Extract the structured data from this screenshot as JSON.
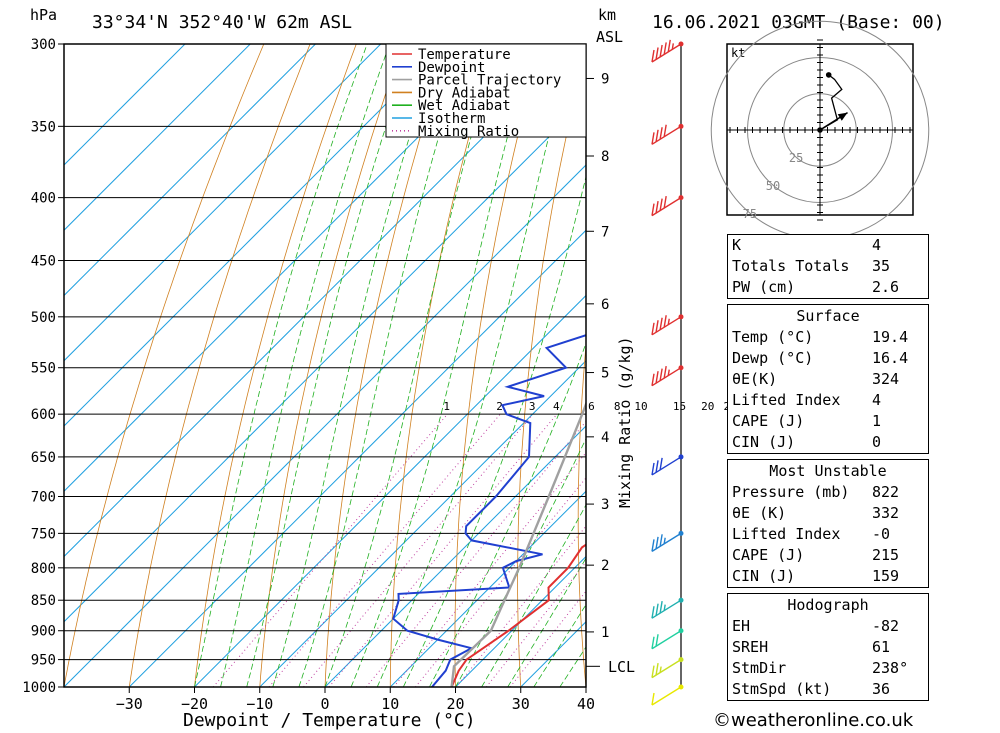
{
  "header": {
    "location": "33°34'N  352°40'W  62m  ASL",
    "datetime": "16.06.2021  03GMT  (Base: 00)",
    "hpa_label": "hPa",
    "km_label": "km",
    "asl_label": "ASL"
  },
  "chart_data": {
    "type": "line",
    "title": "33°34'N 352°40'W 62m ASL",
    "xlabel": "Dewpoint / Temperature (°C)",
    "ylabel": "hPa",
    "right_axis_label": "Mixing Ratio (g/kg)",
    "xlim": [
      -40,
      40
    ],
    "ylim": [
      1000,
      300
    ],
    "x_ticks": [
      -30,
      -20,
      -10,
      0,
      10,
      20,
      30,
      40
    ],
    "pressure_levels": [
      300,
      350,
      400,
      450,
      500,
      550,
      600,
      650,
      700,
      750,
      800,
      850,
      900,
      950,
      1000
    ],
    "km_ticks": [
      {
        "km": 1,
        "p": 902
      },
      {
        "km": 2,
        "p": 796
      },
      {
        "km": 3,
        "p": 710
      },
      {
        "km": 4,
        "p": 626
      },
      {
        "km": 5,
        "p": 555
      },
      {
        "km": 6,
        "p": 488
      },
      {
        "km": 7,
        "p": 426
      },
      {
        "km": 8,
        "p": 370
      },
      {
        "km": 9,
        "p": 320
      }
    ],
    "lcl_label": "LCL",
    "lcl_pressure": 962,
    "mixing_ratio_labels": [
      "1",
      "2",
      "3",
      "4",
      "6",
      "8",
      "10",
      "15",
      "20",
      "25"
    ],
    "legend": {
      "placement": "top-right",
      "entries": [
        {
          "name": "Temperature",
          "color": "#e03030",
          "style": "solid"
        },
        {
          "name": "Dewpoint",
          "color": "#2040d0",
          "style": "solid"
        },
        {
          "name": "Parcel Trajectory",
          "color": "#a0a0a0",
          "style": "solid"
        },
        {
          "name": "Dry Adiabat",
          "color": "#d08020",
          "style": "solid"
        },
        {
          "name": "Wet Adiabat",
          "color": "#20b020",
          "style": "solid"
        },
        {
          "name": "Isotherm",
          "color": "#20a0e0",
          "style": "solid"
        },
        {
          "name": "Mixing Ratio",
          "color": "#c040a0",
          "style": "dotted"
        }
      ]
    },
    "series": [
      {
        "name": "Temperature",
        "color": "#e03030",
        "points": [
          [
            1000,
            19.4
          ],
          [
            970,
            18
          ],
          [
            950,
            17.5
          ],
          [
            900,
            19.5
          ],
          [
            850,
            21
          ],
          [
            830,
            19
          ],
          [
            800,
            19
          ],
          [
            770,
            18
          ],
          [
            750,
            19
          ],
          [
            720,
            18
          ],
          [
            700,
            15.5
          ],
          [
            650,
            11.5
          ],
          [
            600,
            7
          ],
          [
            580,
            6.5
          ],
          [
            550,
            4
          ],
          [
            500,
            -1
          ],
          [
            450,
            -7
          ],
          [
            400,
            -14
          ],
          [
            350,
            -22
          ],
          [
            320,
            -28
          ],
          [
            300,
            -32
          ]
        ]
      },
      {
        "name": "Dewpoint",
        "color": "#2040d0",
        "points": [
          [
            1000,
            16.4
          ],
          [
            970,
            16
          ],
          [
            950,
            15
          ],
          [
            930,
            16.5
          ],
          [
            915,
            10
          ],
          [
            900,
            4
          ],
          [
            880,
            0
          ],
          [
            850,
            -2
          ],
          [
            840,
            -3
          ],
          [
            830,
            13
          ],
          [
            800,
            9
          ],
          [
            790,
            10
          ],
          [
            780,
            13
          ],
          [
            760,
            0
          ],
          [
            750,
            -2
          ],
          [
            740,
            -3
          ],
          [
            700,
            -3
          ],
          [
            650,
            -4
          ],
          [
            610,
            -9
          ],
          [
            600,
            -14
          ],
          [
            590,
            -16
          ],
          [
            580,
            -11
          ],
          [
            570,
            -18
          ],
          [
            550,
            -12
          ],
          [
            530,
            -18
          ],
          [
            500,
            -8
          ],
          [
            450,
            -9
          ],
          [
            400,
            -14
          ],
          [
            380,
            -18
          ],
          [
            350,
            -26
          ],
          [
            320,
            -32
          ],
          [
            300,
            -42
          ]
        ]
      },
      {
        "name": "Parcel Trajectory",
        "color": "#a0a0a0",
        "points": [
          [
            1000,
            19.4
          ],
          [
            962,
            16.6
          ],
          [
            900,
            16.8
          ],
          [
            850,
            14.2
          ],
          [
            800,
            11.5
          ],
          [
            750,
            8.4
          ],
          [
            700,
            5.1
          ],
          [
            650,
            1.5
          ],
          [
            600,
            -2.4
          ],
          [
            550,
            -6.8
          ],
          [
            500,
            -11.8
          ],
          [
            450,
            -17.4
          ],
          [
            400,
            -23.8
          ],
          [
            350,
            -31.5
          ],
          [
            300,
            -40.5
          ]
        ]
      }
    ],
    "wind_barbs": [
      {
        "p": 1000,
        "color": "#e8e800",
        "speed_kt": 10
      },
      {
        "p": 950,
        "color": "#c8e020",
        "speed_kt": 15
      },
      {
        "p": 900,
        "color": "#20d0a0",
        "speed_kt": 20
      },
      {
        "p": 850,
        "color": "#20b0b0",
        "speed_kt": 25
      },
      {
        "p": 750,
        "color": "#2080d0",
        "speed_kt": 25
      },
      {
        "p": 650,
        "color": "#2040d0",
        "speed_kt": 30
      },
      {
        "p": 550,
        "color": "#e03030",
        "speed_kt": 35
      },
      {
        "p": 500,
        "color": "#e03030",
        "speed_kt": 35
      },
      {
        "p": 400,
        "color": "#e03030",
        "speed_kt": 40
      },
      {
        "p": 350,
        "color": "#e03030",
        "speed_kt": 40
      },
      {
        "p": 300,
        "color": "#e03030",
        "speed_kt": 45
      }
    ],
    "hodograph": {
      "unit_label": "kt",
      "ring_labels": [
        "25",
        "50",
        "75"
      ],
      "trace_kt": [
        [
          0,
          0
        ],
        [
          12,
          7
        ],
        [
          8,
          22
        ],
        [
          15,
          28
        ],
        [
          10,
          35
        ],
        [
          6,
          38
        ]
      ],
      "storm_motion_kt": [
        [
          0,
          0
        ],
        [
          19,
          12
        ]
      ]
    }
  },
  "indices": {
    "block1": [
      {
        "k": "K",
        "v": "4"
      },
      {
        "k": "Totals Totals",
        "v": "35"
      },
      {
        "k": "PW (cm)",
        "v": "2.6"
      }
    ],
    "surface": {
      "title": "Surface",
      "rows": [
        {
          "k": "Temp (°C)",
          "v": "19.4"
        },
        {
          "k": "Dewp (°C)",
          "v": "16.4"
        },
        {
          "k": "θE(K)",
          "v": "324"
        },
        {
          "k": "Lifted Index",
          "v": "4"
        },
        {
          "k": "CAPE (J)",
          "v": "1"
        },
        {
          "k": "CIN (J)",
          "v": "0"
        }
      ]
    },
    "unstable": {
      "title": "Most Unstable",
      "rows": [
        {
          "k": "Pressure (mb)",
          "v": "822"
        },
        {
          "k": "θE (K)",
          "v": "332"
        },
        {
          "k": "Lifted Index",
          "v": "-0"
        },
        {
          "k": "CAPE (J)",
          "v": "215"
        },
        {
          "k": "CIN (J)",
          "v": "159"
        }
      ]
    },
    "hodo": {
      "title": "Hodograph",
      "rows": [
        {
          "k": "EH",
          "v": "-82"
        },
        {
          "k": "SREH",
          "v": "61"
        },
        {
          "k": "StmDir",
          "v": "238°"
        },
        {
          "k": "StmSpd (kt)",
          "v": "36"
        }
      ]
    }
  },
  "footer": {
    "copyright": "©weatheronline.co.uk"
  },
  "colors": {
    "temperature": "#e03030",
    "dewpoint": "#2040d0",
    "parcel": "#a0a0a0",
    "dry_adiabat": "#d08020",
    "wet_adiabat": "#20b020",
    "isotherm": "#20a0e0",
    "mixing_ratio": "#c040a0"
  }
}
